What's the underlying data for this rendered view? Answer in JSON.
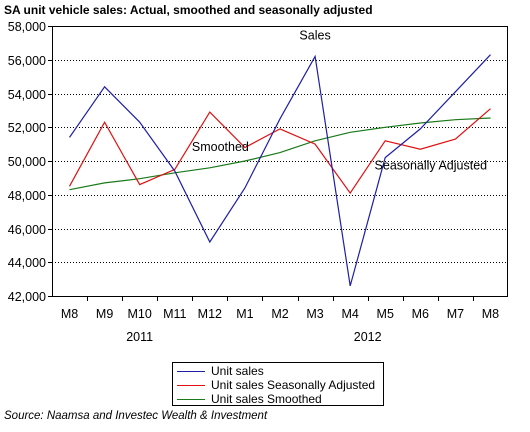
{
  "colors": {
    "unit_sales": "#1f1fa8",
    "seasonally_adjusted": "#e01010",
    "smoothed": "#1a7a1a",
    "axis": "#000000",
    "grid": "#000000"
  },
  "source": "Source: Naamsa and Investec Wealth & Investment",
  "chart_data": {
    "type": "line",
    "title": "SA unit vehicle sales: Actual, smoothed and seasonally adjusted",
    "xlabel": "",
    "ylabel": "",
    "categories": [
      "M8",
      "M9",
      "M10",
      "M11",
      "M12",
      "M1",
      "M2",
      "M3",
      "M4",
      "M5",
      "M6",
      "M7",
      "M8"
    ],
    "year_labels": [
      {
        "label": "2011",
        "category_index": 2
      },
      {
        "label": "2012",
        "category_index": 8.5
      }
    ],
    "ylim": [
      42000,
      58000
    ],
    "yticks": [
      42000,
      44000,
      46000,
      48000,
      50000,
      52000,
      54000,
      56000,
      58000
    ],
    "ytick_labels": [
      "42,000",
      "44,000",
      "46,000",
      "48,000",
      "50,000",
      "52,000",
      "54,000",
      "56,000",
      "58,000"
    ],
    "grid": "horizontal",
    "legend_position": "bottom-center",
    "series": [
      {
        "name": "Unit sales",
        "color_key": "unit_sales",
        "values": [
          51400,
          54400,
          52300,
          49400,
          45200,
          48400,
          52500,
          56200,
          42600,
          50200,
          51900,
          54100,
          56300
        ]
      },
      {
        "name": "Unit sales Seasonally Adjusted",
        "color_key": "seasonally_adjusted",
        "values": [
          48500,
          52300,
          48600,
          49500,
          52900,
          50800,
          51900,
          51000,
          48100,
          51200,
          50700,
          51300,
          53100
        ]
      },
      {
        "name": "Unit sales Smoothed",
        "color_key": "smoothed",
        "values": [
          48300,
          48700,
          48950,
          49300,
          49600,
          50000,
          50500,
          51200,
          51700,
          52000,
          52250,
          52450,
          52550
        ]
      }
    ],
    "annotations": [
      {
        "text": "Sales",
        "category_index": 7,
        "value": 57200
      },
      {
        "text": "Smoothed",
        "category_index": 4.3,
        "value": 50600
      },
      {
        "text": "Seasonally Adjusted",
        "category_index": 10.3,
        "value": 49500
      }
    ]
  }
}
